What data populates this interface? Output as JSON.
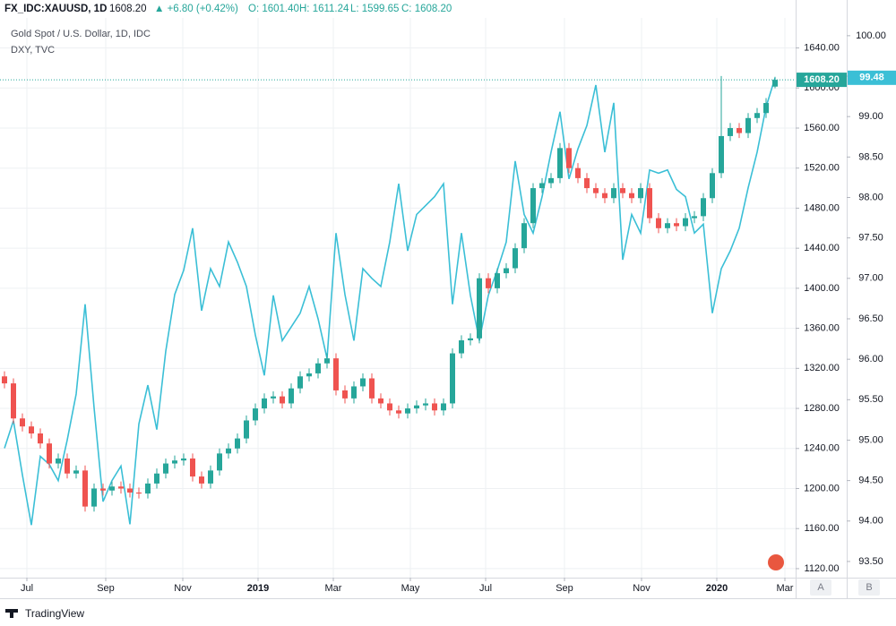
{
  "header": {
    "symbol": "FX_IDC:XAUUSD, 1D",
    "last": "1608.20",
    "change": "▲ +6.80 (+0.42%)",
    "open": "O: 1601.40",
    "high": "H: 1611.24",
    "low": "L: 1599.65",
    "close": "C: 1608.20"
  },
  "footer": {
    "brand": "TradingView",
    "scale_a": "A",
    "scale_b": "B"
  },
  "chart_data": {
    "type": "candlestick",
    "legend": [
      "Gold Spot / U.S. Dollar, 1D, IDC",
      "DXY, TVC"
    ],
    "xlim": [
      -0.5,
      88.3
    ],
    "xticks": [
      {
        "value": 2.5,
        "label": "Jul"
      },
      {
        "value": 11.3,
        "label": "Sep"
      },
      {
        "value": 19.9,
        "label": "Nov"
      },
      {
        "value": 28.3,
        "label": "2019"
      },
      {
        "value": 36.7,
        "label": "Mar"
      },
      {
        "value": 45.3,
        "label": "May"
      },
      {
        "value": 53.7,
        "label": "Jul"
      },
      {
        "value": 62.5,
        "label": "Sep"
      },
      {
        "value": 71.1,
        "label": "Nov"
      },
      {
        "value": 79.5,
        "label": "2020"
      },
      {
        "value": 87.1,
        "label": "Mar"
      }
    ],
    "ylim": [
      1111,
      1670
    ],
    "yticks": [
      {
        "value": 1120,
        "label": "1120.00"
      },
      {
        "value": 1160,
        "label": "1160.00"
      },
      {
        "value": 1200,
        "label": "1200.00"
      },
      {
        "value": 1240,
        "label": "1240.00"
      },
      {
        "value": 1280,
        "label": "1280.00"
      },
      {
        "value": 1320,
        "label": "1320.00"
      },
      {
        "value": 1360,
        "label": "1360.00"
      },
      {
        "value": 1400,
        "label": "1400.00"
      },
      {
        "value": 1440,
        "label": "1440.00"
      },
      {
        "value": 1480,
        "label": "1480.00"
      },
      {
        "value": 1520,
        "label": "1520.00"
      },
      {
        "value": 1560,
        "label": "1560.00"
      },
      {
        "value": 1600,
        "label": "1600.00"
      },
      {
        "value": 1640,
        "label": "1640.00"
      }
    ],
    "y2lim": [
      93.3,
      100.22
    ],
    "y2ticks": [
      {
        "value": 93.5,
        "label": "93.50"
      },
      {
        "value": 94,
        "label": "94.00"
      },
      {
        "value": 94.5,
        "label": "94.50"
      },
      {
        "value": 95,
        "label": "95.00"
      },
      {
        "value": 95.5,
        "label": "95.50"
      },
      {
        "value": 96,
        "label": "96.00"
      },
      {
        "value": 96.5,
        "label": "96.50"
      },
      {
        "value": 97,
        "label": "97.00"
      },
      {
        "value": 97.5,
        "label": "97.50"
      },
      {
        "value": 98,
        "label": "98.00"
      },
      {
        "value": 98.5,
        "label": "98.50"
      },
      {
        "value": 99,
        "label": "99.00"
      },
      {
        "value": 99.5,
        "label": "99.50"
      },
      {
        "value": 100,
        "label": "100.00"
      }
    ],
    "grid": true,
    "up_color": "#26a69a",
    "down_color": "#ef5350",
    "open": [
      1312,
      1305,
      1270,
      1262,
      1255,
      1245,
      1225,
      1230,
      1215,
      1218,
      1182,
      1200,
      1198,
      1202,
      1200,
      1196,
      1195,
      1205,
      1215,
      1225,
      1228,
      1230,
      1212,
      1205,
      1218,
      1235,
      1240,
      1250,
      1268,
      1280,
      1290,
      1292,
      1285,
      1300,
      1312,
      1315,
      1325,
      1330,
      1298,
      1290,
      1302,
      1310,
      1290,
      1285,
      1278,
      1275,
      1280,
      1283,
      1285,
      1278,
      1285,
      1335,
      1348,
      1350,
      1410,
      1400,
      1415,
      1420,
      1440,
      1465,
      1500,
      1505,
      1510,
      1540,
      1520,
      1510,
      1500,
      1495,
      1490,
      1500,
      1495,
      1490,
      1500,
      1470,
      1460,
      1465,
      1462,
      1470,
      1472,
      1490,
      1515,
      1552,
      1560,
      1555,
      1570,
      1575,
      1601.4
    ],
    "high": [
      1317,
      1310,
      1275,
      1267,
      1260,
      1250,
      1235,
      1235,
      1223,
      1223,
      1205,
      1205,
      1207,
      1207,
      1205,
      1201,
      1210,
      1220,
      1230,
      1233,
      1235,
      1235,
      1217,
      1223,
      1240,
      1245,
      1255,
      1273,
      1285,
      1295,
      1297,
      1297,
      1305,
      1317,
      1320,
      1330,
      1335,
      1335,
      1303,
      1307,
      1315,
      1315,
      1295,
      1290,
      1283,
      1285,
      1288,
      1290,
      1290,
      1290,
      1340,
      1353,
      1355,
      1415,
      1415,
      1420,
      1425,
      1445,
      1470,
      1505,
      1510,
      1515,
      1545,
      1545,
      1525,
      1515,
      1505,
      1500,
      1505,
      1505,
      1500,
      1505,
      1505,
      1475,
      1470,
      1470,
      1475,
      1477,
      1495,
      1520,
      1612,
      1565,
      1565,
      1575,
      1580,
      1590,
      1611.24
    ],
    "low": [
      1300,
      1265,
      1257,
      1250,
      1240,
      1220,
      1220,
      1210,
      1210,
      1177,
      1177,
      1193,
      1193,
      1195,
      1191,
      1190,
      1190,
      1200,
      1210,
      1220,
      1223,
      1207,
      1200,
      1200,
      1213,
      1230,
      1235,
      1245,
      1263,
      1275,
      1285,
      1280,
      1280,
      1295,
      1307,
      1310,
      1320,
      1293,
      1285,
      1285,
      1297,
      1285,
      1280,
      1273,
      1270,
      1270,
      1275,
      1278,
      1273,
      1273,
      1280,
      1330,
      1343,
      1345,
      1395,
      1395,
      1410,
      1415,
      1435,
      1460,
      1495,
      1500,
      1505,
      1515,
      1505,
      1495,
      1490,
      1485,
      1485,
      1490,
      1485,
      1485,
      1465,
      1455,
      1455,
      1457,
      1457,
      1465,
      1467,
      1485,
      1510,
      1547,
      1550,
      1550,
      1565,
      1570,
      1599.65
    ],
    "close": [
      1305,
      1270,
      1262,
      1255,
      1245,
      1225,
      1230,
      1215,
      1218,
      1182,
      1200,
      1198,
      1202,
      1200,
      1196,
      1195,
      1205,
      1215,
      1225,
      1228,
      1230,
      1212,
      1205,
      1218,
      1235,
      1240,
      1250,
      1268,
      1280,
      1290,
      1292,
      1285,
      1300,
      1312,
      1315,
      1325,
      1330,
      1298,
      1290,
      1302,
      1310,
      1290,
      1285,
      1278,
      1275,
      1280,
      1283,
      1285,
      1278,
      1285,
      1335,
      1348,
      1350,
      1410,
      1400,
      1415,
      1420,
      1440,
      1465,
      1500,
      1505,
      1510,
      1540,
      1520,
      1510,
      1500,
      1495,
      1490,
      1500,
      1495,
      1490,
      1500,
      1470,
      1460,
      1465,
      1462,
      1470,
      1472,
      1490,
      1515,
      1552,
      1560,
      1555,
      1570,
      1575,
      1585,
      1608.2
    ],
    "series": [
      {
        "name": "DXY, TVC",
        "color": "#3bbfd6",
        "axis": "y2",
        "values": [
          94.9,
          95.24,
          94.57,
          93.95,
          94.8,
          94.7,
          94.5,
          95.0,
          95.57,
          96.68,
          95.4,
          94.24,
          94.5,
          94.68,
          93.96,
          95.2,
          95.68,
          95.13,
          96.1,
          96.8,
          97.1,
          97.62,
          96.6,
          97.12,
          96.9,
          97.45,
          97.2,
          96.9,
          96.3,
          95.8,
          96.79,
          96.23,
          96.4,
          96.57,
          96.9,
          96.5,
          96.01,
          97.56,
          96.8,
          96.23,
          97.12,
          97.0,
          96.9,
          97.45,
          98.17,
          97.34,
          97.79,
          97.9,
          98.01,
          98.17,
          96.68,
          97.56,
          96.79,
          96.23,
          96.79,
          97.1,
          97.45,
          98.45,
          97.79,
          97.56,
          98.01,
          98.56,
          99.06,
          98.23,
          98.6,
          98.89,
          99.39,
          98.56,
          99.17,
          97.23,
          97.79,
          97.56,
          98.34,
          98.3,
          98.34,
          98.1,
          98.01,
          97.56,
          97.67,
          96.57,
          97.12,
          97.34,
          97.62,
          98.12,
          98.56,
          99.12,
          99.48
        ]
      }
    ],
    "price_labels": [
      {
        "value": 1608.2,
        "label": "1608.20",
        "axis": "y",
        "color": "#26a69a"
      },
      {
        "value": 99.48,
        "label": "99.48",
        "axis": "y2",
        "color": "#3bbfd6"
      }
    ]
  }
}
